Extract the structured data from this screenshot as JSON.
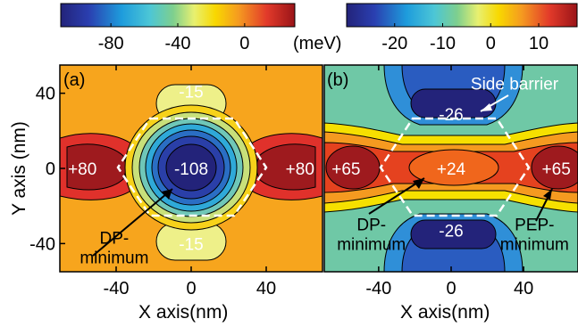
{
  "colorbars": [
    {
      "id": "a",
      "ticks": [
        -80,
        -40,
        0
      ],
      "tick_labels": [
        "-80",
        "-40",
        "0"
      ],
      "range": [
        -110,
        30
      ],
      "unit": "(meV)"
    },
    {
      "id": "b",
      "ticks": [
        -20,
        -10,
        0,
        10
      ],
      "tick_labels": [
        "-20",
        "-10",
        "0",
        "10"
      ],
      "range": [
        -30,
        18
      ]
    }
  ],
  "chart_data": [
    {
      "type": "heatmap",
      "panel_label": "(a)",
      "xlabel": "X axis(nm)",
      "ylabel": "Y axis (nm)",
      "xlim": [
        -70,
        70
      ],
      "ylim": [
        -55,
        55
      ],
      "xticks": [
        -40,
        0,
        40
      ],
      "yticks": [
        -40,
        0,
        40
      ],
      "xtick_labels": [
        "-40",
        "0",
        "40"
      ],
      "ytick_labels": [
        "-40",
        "0",
        "40"
      ],
      "units": "meV",
      "regions": [
        {
          "label": "-108",
          "x": 0,
          "y": 0,
          "value": -108
        },
        {
          "label": "+80",
          "x": -58,
          "y": 0,
          "value": 80
        },
        {
          "label": "+80",
          "x": 58,
          "y": 0,
          "value": 80
        },
        {
          "label": "-15",
          "x": 0,
          "y": 41,
          "value": -15
        },
        {
          "label": "-15",
          "x": 0,
          "y": -40,
          "value": -15
        }
      ],
      "annotations": [
        {
          "text": "DP-",
          "text2": "minimum",
          "x": -41,
          "y": -40
        }
      ]
    },
    {
      "type": "heatmap",
      "panel_label": "(b)",
      "xlabel": "X axis(nm)",
      "ylabel": "",
      "xlim": [
        -70,
        70
      ],
      "ylim": [
        -55,
        55
      ],
      "xticks": [
        -40,
        0,
        40
      ],
      "xtick_labels": [
        "-40",
        "0",
        "40"
      ],
      "units": "meV",
      "regions": [
        {
          "label": "+24",
          "x": 0,
          "y": 0,
          "value": 24
        },
        {
          "label": "+65",
          "x": -58,
          "y": 0,
          "value": 65
        },
        {
          "label": "+65",
          "x": 58,
          "y": 0,
          "value": 65
        },
        {
          "label": "-26",
          "x": 0,
          "y": 29,
          "value": -26
        },
        {
          "label": "-26",
          "x": 0,
          "y": -33,
          "value": -26
        }
      ],
      "annotations": [
        {
          "text": "Side barrier",
          "x": 35,
          "y": 42
        },
        {
          "text": "DP-",
          "text2": "minimum",
          "x": -44,
          "y": -33
        },
        {
          "text": "PEP-",
          "text2": "minimum",
          "x": 46,
          "y": -33
        }
      ]
    }
  ]
}
